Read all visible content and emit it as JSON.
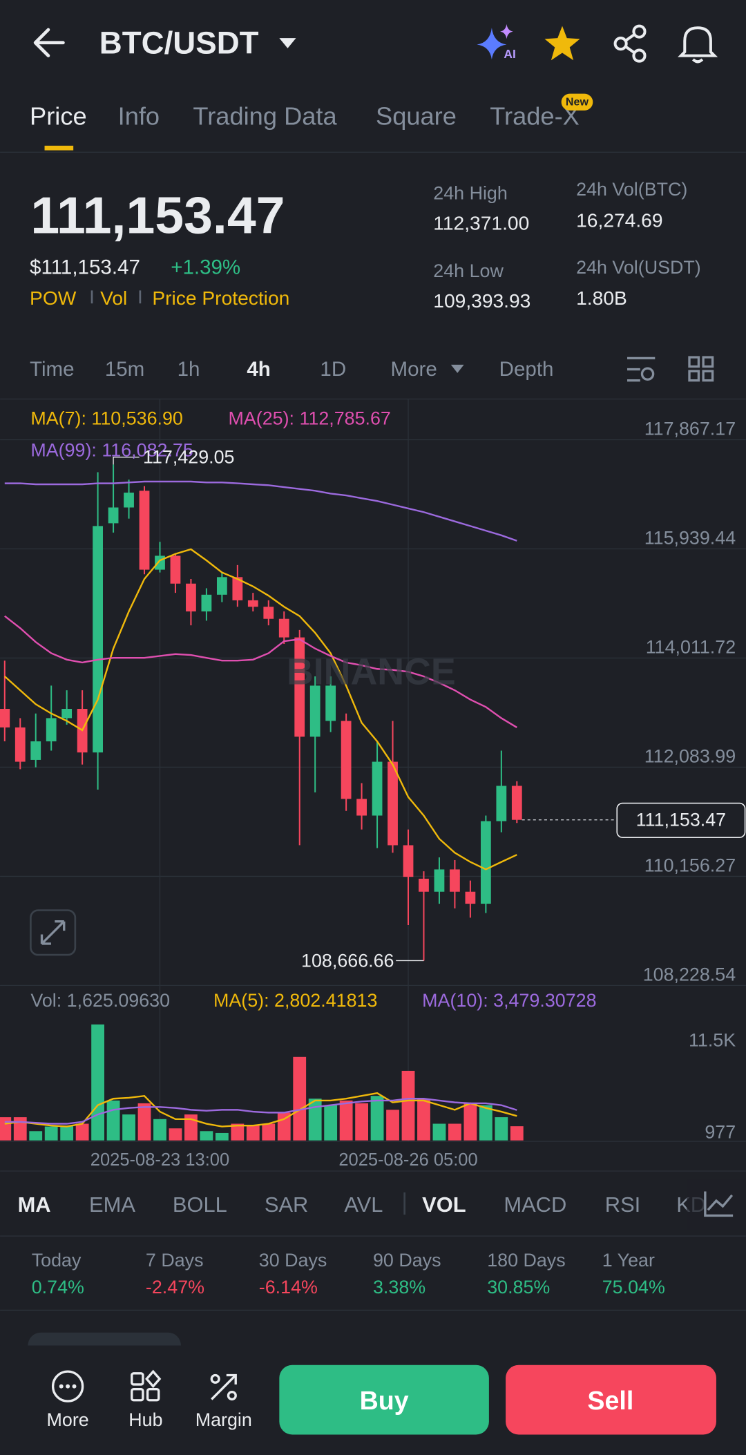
{
  "header": {
    "pair": "BTC/USDT"
  },
  "tabs": {
    "items": [
      "Price",
      "Info",
      "Trading Data",
      "Square",
      "Trade-X"
    ],
    "active": 0,
    "badge": "New"
  },
  "ticker": {
    "last": "111,153.47",
    "usd": "$111,153.47",
    "change": "+1.39%",
    "change_color": "#2ebd85",
    "tags": [
      "POW",
      "Vol",
      "Price Protection"
    ],
    "stats": [
      {
        "label": "24h High",
        "value": "112,371.00"
      },
      {
        "label": "24h Vol(BTC)",
        "value": "16,274.69"
      },
      {
        "label": "24h Low",
        "value": "109,393.93"
      },
      {
        "label": "24h Vol(USDT)",
        "value": "1.80B"
      }
    ]
  },
  "intervals": {
    "items": [
      "Time",
      "15m",
      "1h",
      "4h",
      "1D",
      "More",
      "Depth"
    ],
    "active": 3
  },
  "chart_data": [
    {
      "type": "candlestick",
      "open": [
        113114,
        112786,
        112212,
        112540,
        112950,
        113114,
        112344,
        116392,
        116671,
        116966,
        115572,
        115818,
        115326,
        114835,
        115130,
        115441,
        115031,
        114917,
        114704,
        114376,
        112622,
        112901,
        112901,
        111524,
        111229,
        112180,
        110705,
        110114,
        109884,
        110278,
        109884,
        109672,
        111131,
        111754
      ],
      "high": [
        113966,
        112950,
        113032,
        113524,
        113442,
        113442,
        117293,
        117429.05,
        117162,
        117048,
        116064,
        115851,
        115408,
        115244,
        115523,
        115654,
        115163,
        115031,
        114835,
        114507,
        113688,
        113688,
        113032,
        111803,
        112540,
        112901,
        110983,
        110245,
        110491,
        110442,
        110081,
        111229,
        112376,
        111836
      ],
      "low": [
        112540,
        112048,
        112081,
        112376,
        112835,
        112130,
        111688,
        116228,
        116474,
        115490,
        115523,
        115163,
        114589,
        114671,
        115000,
        114917,
        114835,
        114589,
        114261,
        110705,
        111639,
        112704,
        111311,
        110983,
        110655,
        110573,
        109295,
        108666.66,
        109672,
        109590,
        109426,
        109508,
        110934,
        111098
      ],
      "close": [
        112786,
        112180,
        112540,
        112950,
        113114,
        112344,
        116343,
        116671,
        116933,
        115572,
        115818,
        115326,
        114835,
        115130,
        115441,
        115031,
        114917,
        114704,
        114376,
        112622,
        113524,
        113524,
        111524,
        111229,
        112180,
        110705,
        110147,
        109884,
        110278,
        109884,
        109672,
        111131,
        111754,
        111153.47
      ],
      "up_color": "#2ebd85",
      "down_color": "#f6465d",
      "ylim": [
        108228.54,
        118586.5
      ],
      "yticks": [
        {
          "value": 117867.17,
          "label": "117,867.17"
        },
        {
          "value": 115939.44,
          "label": "115,939.44"
        },
        {
          "value": 114011.72,
          "label": "114,011.72"
        },
        {
          "value": 112083.99,
          "label": "112,083.99"
        },
        {
          "value": 110156.27,
          "label": "110,156.27"
        },
        {
          "value": 108228.54,
          "label": "108,228.54"
        }
      ],
      "grid": true,
      "series": [
        {
          "name": "MA(7): 110,536.90",
          "color": "#f0b90b",
          "values": [
            113688,
            113442,
            113196,
            113032,
            112901,
            112737,
            113278,
            114179,
            114835,
            115408,
            115736,
            115851,
            115933,
            115736,
            115523,
            115408,
            115277,
            115113,
            114917,
            114753,
            114458,
            114097,
            113524,
            112868,
            112540,
            112130,
            111557,
            111229,
            110819,
            110573,
            110410,
            110279,
            110410,
            110536.9
          ]
        },
        {
          "name": "MA(25): 112,785.67",
          "color": "#e04fb0",
          "values": [
            114753,
            114540,
            114294,
            114097,
            113983,
            113933,
            113983,
            114015,
            114015,
            114015,
            114048,
            114081,
            114065,
            114015,
            113966,
            113966,
            113983,
            114097,
            114310,
            114343,
            114179,
            114048,
            113933,
            113884,
            113819,
            113802,
            113769,
            113688,
            113573,
            113442,
            113278,
            113147,
            112950,
            112785.67
          ]
        },
        {
          "name": "MA(99): 116,082.75",
          "color": "#9c6ade",
          "values": [
            117097,
            117097,
            117080,
            117080,
            117080,
            117080,
            117097,
            117097,
            117113,
            117129,
            117129,
            117129,
            117129,
            117113,
            117113,
            117097,
            117080,
            117064,
            117031,
            116998,
            116966,
            116916,
            116884,
            116834,
            116785,
            116720,
            116654,
            116589,
            116507,
            116425,
            116343,
            116261,
            116179,
            116082.75
          ]
        }
      ],
      "high_label": "117,429.05",
      "low_label": "108,666.66",
      "last_price": {
        "value": 111153.47,
        "label": "111,153.47"
      },
      "watermark": "BINANCE"
    },
    {
      "type": "bar",
      "categories": [
        null,
        null,
        null,
        null,
        null,
        null,
        null,
        null,
        null,
        null,
        "2025-08-23 13:00",
        null,
        null,
        null,
        null,
        null,
        null,
        null,
        null,
        null,
        null,
        null,
        null,
        null,
        null,
        null,
        "2025-08-26 05:00",
        null,
        null,
        null,
        null,
        null,
        null,
        null
      ],
      "ylim": [
        0,
        17433
      ],
      "yticks": [
        977,
        {
          "value": 11500,
          "label": "11.5K"
        }
      ],
      "series": [
        {
          "name": "Vol: 1,625.09630",
          "values": [
            2658,
            2658,
            1063,
            1595,
            1701,
            1913,
            13288,
            4571,
            2976,
            4252,
            2445,
            1382,
            2976,
            1063,
            850,
            1913,
            1701,
            1913,
            3189,
            9567,
            4784,
            4039,
            4571,
            4252,
            5102,
            3508,
            7973,
            4784,
            1913,
            1913,
            4252,
            4039,
            2658,
            1625.0963
          ]
        },
        {
          "name": "MA(5): 2,802.41813",
          "color": "#f0b90b",
          "values": [
            1913,
            2126,
            1913,
            1701,
            1595,
            1913,
            4039,
            4784,
            4890,
            5102,
            3295,
            2445,
            2445,
            1913,
            1595,
            1701,
            1701,
            1913,
            2445,
            3508,
            4571,
            4571,
            4784,
            5102,
            5421,
            4358,
            4571,
            4571,
            4039,
            3508,
            4252,
            3721,
            3295,
            2802.41813
          ]
        },
        {
          "name": "MA(10): 3,479.30728",
          "color": "#9c6ade",
          "values": [
            2126,
            2126,
            2020,
            1913,
            1913,
            2126,
            2976,
            3508,
            3721,
            3827,
            3827,
            3721,
            3508,
            3402,
            3508,
            3508,
            3295,
            3189,
            3189,
            3508,
            3827,
            4039,
            4252,
            4465,
            4571,
            4571,
            4784,
            4784,
            4571,
            4358,
            4252,
            4252,
            4039,
            3479.30728
          ]
        }
      ]
    }
  ],
  "indicators": {
    "main": [
      "MA",
      "EMA",
      "BOLL",
      "SAR",
      "AVL"
    ],
    "sub": [
      "VOL",
      "MACD",
      "RSI",
      "KD"
    ],
    "active_main": 0,
    "active_sub": 0
  },
  "performance": [
    {
      "label": "Today",
      "value": "0.74%",
      "color": "#2ebd85"
    },
    {
      "label": "7 Days",
      "value": "-2.47%",
      "color": "#f6465d"
    },
    {
      "label": "30 Days",
      "value": "-6.14%",
      "color": "#f6465d"
    },
    {
      "label": "90 Days",
      "value": "3.38%",
      "color": "#2ebd85"
    },
    {
      "label": "180 Days",
      "value": "30.85%",
      "color": "#2ebd85"
    },
    {
      "label": "1 Year",
      "value": "75.04%",
      "color": "#2ebd85"
    }
  ],
  "bottom_bar": {
    "actions": [
      "More",
      "Hub",
      "Margin"
    ],
    "buy": "Buy",
    "sell": "Sell"
  }
}
